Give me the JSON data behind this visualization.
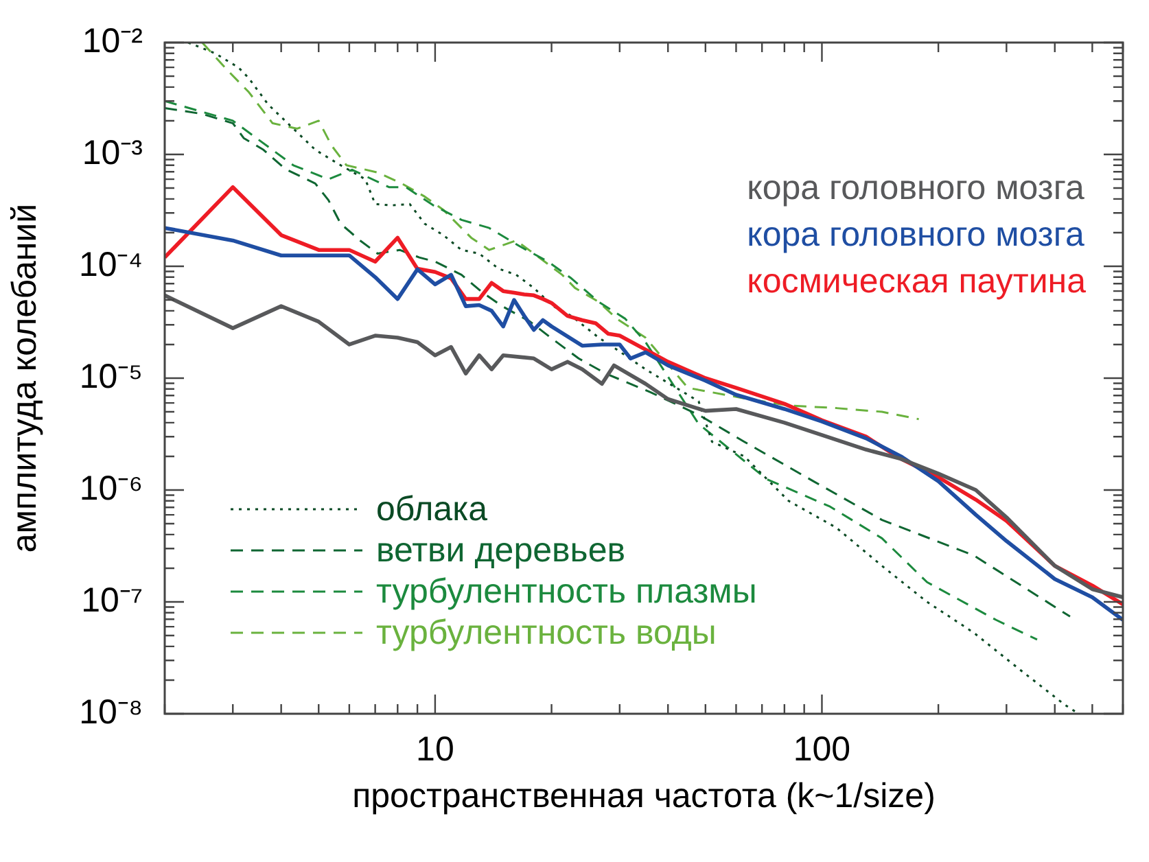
{
  "chart_data": {
    "type": "line",
    "xlabel": "пространственная частота (k~1/size)",
    "ylabel": "амплитуда колебаний",
    "log": "xy",
    "legend": "bottom left",
    "xlim": [
      2,
      600
    ],
    "ylim": [
      1e-08,
      0.01
    ],
    "xticks": [
      {
        "value": 2,
        "label": null
      },
      {
        "value": 3,
        "label": null
      },
      {
        "value": 4,
        "label": null
      },
      {
        "value": 5,
        "label": null
      },
      {
        "value": 6,
        "label": null
      },
      {
        "value": 7,
        "label": null
      },
      {
        "value": 8,
        "label": null
      },
      {
        "value": 9,
        "label": null
      },
      10,
      {
        "value": 20,
        "label": null
      },
      {
        "value": 30,
        "label": null
      },
      {
        "value": 40,
        "label": null
      },
      {
        "value": 50,
        "label": null
      },
      {
        "value": 60,
        "label": null
      },
      {
        "value": 70,
        "label": null
      },
      {
        "value": 80,
        "label": null
      },
      {
        "value": 90,
        "label": null
      },
      100,
      {
        "value": 200,
        "label": null
      },
      {
        "value": 300,
        "label": null
      },
      {
        "value": 400,
        "label": null
      },
      {
        "value": 500,
        "label": null
      },
      {
        "value": 600,
        "label": null
      }
    ],
    "yticks": [
      {
        "value": 1e-08,
        "label": "10⁻⁸"
      },
      {
        "value": 2e-08,
        "label": null
      },
      {
        "value": 3e-08,
        "label": null
      },
      {
        "value": 4e-08,
        "label": null
      },
      {
        "value": 5e-08,
        "label": null
      },
      {
        "value": 6e-08,
        "label": null
      },
      {
        "value": 7e-08,
        "label": null
      },
      {
        "value": 8e-08,
        "label": null
      },
      {
        "value": 9e-08,
        "label": null
      },
      {
        "value": 1e-07,
        "label": "10⁻⁷"
      },
      {
        "value": 2e-07,
        "label": null
      },
      {
        "value": 3e-07,
        "label": null
      },
      {
        "value": 4e-07,
        "label": null
      },
      {
        "value": 5e-07,
        "label": null
      },
      {
        "value": 6e-07,
        "label": null
      },
      {
        "value": 7e-07,
        "label": null
      },
      {
        "value": 8e-07,
        "label": null
      },
      {
        "value": 9e-07,
        "label": null
      },
      {
        "value": 1e-06,
        "label": "10⁻⁶"
      },
      {
        "value": 2e-06,
        "label": null
      },
      {
        "value": 3e-06,
        "label": null
      },
      {
        "value": 4e-06,
        "label": null
      },
      {
        "value": 5e-06,
        "label": null
      },
      {
        "value": 6e-06,
        "label": null
      },
      {
        "value": 7e-06,
        "label": null
      },
      {
        "value": 8e-06,
        "label": null
      },
      {
        "value": 9e-06,
        "label": null
      },
      {
        "value": 1e-05,
        "label": "10⁻⁵"
      },
      {
        "value": 2e-05,
        "label": null
      },
      {
        "value": 3e-05,
        "label": null
      },
      {
        "value": 4e-05,
        "label": null
      },
      {
        "value": 5e-05,
        "label": null
      },
      {
        "value": 6e-05,
        "label": null
      },
      {
        "value": 7e-05,
        "label": null
      },
      {
        "value": 8e-05,
        "label": null
      },
      {
        "value": 9e-05,
        "label": null
      },
      {
        "value": 0.0001,
        "label": "10⁻⁴"
      },
      {
        "value": 0.0002,
        "label": null
      },
      {
        "value": 0.0003,
        "label": null
      },
      {
        "value": 0.0004,
        "label": null
      },
      {
        "value": 0.0005,
        "label": null
      },
      {
        "value": 0.0006,
        "label": null
      },
      {
        "value": 0.0007,
        "label": null
      },
      {
        "value": 0.0008,
        "label": null
      },
      {
        "value": 0.0009,
        "label": null
      },
      {
        "value": 0.001,
        "label": "10⁻³"
      },
      {
        "value": 0.002,
        "label": null
      },
      {
        "value": 0.003,
        "label": null
      },
      {
        "value": 0.004,
        "label": null
      },
      {
        "value": 0.005,
        "label": null
      },
      {
        "value": 0.006,
        "label": null
      },
      {
        "value": 0.007,
        "label": null
      },
      {
        "value": 0.008,
        "label": null
      },
      {
        "value": 0.009,
        "label": null
      },
      {
        "value": 0.01,
        "label": "10⁻²"
      }
    ],
    "series": [
      {
        "name": "кора головного мозга",
        "color": "#58595b",
        "line_style": "solid",
        "x": [
          2,
          3,
          4,
          5,
          6,
          7,
          8,
          9,
          10,
          11,
          12,
          13,
          14,
          15,
          18,
          20,
          22,
          24,
          27,
          29,
          35,
          40,
          50,
          60,
          80,
          100,
          130,
          160,
          200,
          250,
          300,
          400,
          500,
          600
        ],
        "values": [
          5.5e-05,
          2.8e-05,
          4.4e-05,
          3.2e-05,
          2e-05,
          2.4e-05,
          2.3e-05,
          2.1e-05,
          1.6e-05,
          1.9e-05,
          1.1e-05,
          1.6e-05,
          1.2e-05,
          1.6e-05,
          1.5e-05,
          1.2e-05,
          1.4e-05,
          1.2e-05,
          8.9e-06,
          1.3e-05,
          8.9e-06,
          6.5e-06,
          5.1e-06,
          5.3e-06,
          4e-06,
          3.1e-06,
          2.3e-06,
          1.9e-06,
          1.4e-06,
          1e-06,
          5.7e-07,
          2.1e-07,
          1.3e-07,
          1.1e-07
        ]
      },
      {
        "name": "кора головного мозга",
        "color": "#1f4ea3",
        "line_style": "solid",
        "x": [
          2,
          3,
          4,
          5,
          6,
          7,
          8,
          9,
          10,
          11,
          12,
          13,
          14,
          15,
          16,
          17,
          18,
          19,
          20,
          24,
          27,
          30,
          32,
          35,
          40,
          50,
          60,
          80,
          100,
          130,
          160,
          200,
          250,
          300,
          400,
          500,
          600
        ],
        "values": [
          0.00022,
          0.00017,
          0.000125,
          0.000125,
          0.000125,
          8e-05,
          5.1e-05,
          9.4e-05,
          6.9e-05,
          8.4e-05,
          4.4e-05,
          4.5e-05,
          4e-05,
          2.9e-05,
          5e-05,
          3.6e-05,
          2.7e-05,
          3.3e-05,
          2.9e-05,
          1.95e-05,
          2e-05,
          2e-05,
          1.5e-05,
          1.7e-05,
          1.3e-05,
          9.5e-06,
          7.1e-06,
          5.3e-06,
          4.1e-06,
          2.9e-06,
          2e-06,
          1.2e-06,
          6e-07,
          3.5e-07,
          1.6e-07,
          1.1e-07,
          6.9e-08
        ]
      },
      {
        "name": "космическая паутина",
        "color": "#ee1c25",
        "line_style": "solid",
        "x": [
          2,
          3,
          4,
          5,
          6,
          7,
          8,
          9,
          10,
          11,
          12,
          13,
          14,
          15,
          16,
          17,
          18,
          19,
          20,
          22,
          24,
          26,
          28,
          30,
          35,
          40,
          50,
          60,
          80,
          100,
          130,
          160,
          200,
          250,
          300,
          400,
          500,
          600
        ],
        "values": [
          0.00012,
          0.00051,
          0.00019,
          0.00014,
          0.00014,
          0.00011,
          0.00018,
          9.5e-05,
          8.9e-05,
          7.8e-05,
          5.1e-05,
          5.1e-05,
          7.1e-05,
          6e-05,
          5.8e-05,
          5.6e-05,
          5.5e-05,
          5.1e-05,
          4.7e-05,
          3.6e-05,
          3.3e-05,
          3.1e-05,
          2.5e-05,
          2.4e-05,
          1.8e-05,
          1.4e-05,
          1e-05,
          8.2e-06,
          5.9e-06,
          4.2e-06,
          3e-06,
          1.9e-06,
          1.3e-06,
          8.2e-07,
          5.3e-07,
          2.1e-07,
          1.4e-07,
          9.5e-08
        ]
      },
      {
        "name": "облака",
        "color": "#0b4a24",
        "line_style": "dotted",
        "x": [
          2.3,
          2.7,
          3.1,
          3.3,
          3.7,
          4.3,
          4.9,
          5.7,
          6.6,
          7.0,
          7.7,
          8.6,
          9.4,
          10.5,
          11.7,
          13,
          14.6,
          16.2,
          18,
          20.2,
          22.5,
          26.5,
          29.5,
          35,
          48,
          52,
          63,
          82,
          109,
          143,
          187,
          247,
          324,
          425,
          461
        ],
        "values": [
          0.01,
          0.008,
          0.006,
          0.0048,
          0.0028,
          0.0017,
          0.0011,
          0.0008,
          0.0006,
          0.00036,
          0.00035,
          0.00036,
          0.00024,
          0.00019,
          0.00014,
          0.00013,
          9.5e-05,
          8.4e-05,
          6.4e-05,
          4.4e-05,
          3.6e-05,
          2.3e-05,
          1.8e-05,
          1.2e-05,
          6.2e-06,
          2.7e-06,
          2e-06,
          8e-07,
          4.6e-07,
          2.1e-07,
          1e-07,
          5.3e-08,
          2.5e-08,
          1.2e-08,
          1e-08
        ]
      },
      {
        "name": "ветви деревьев",
        "color": "#0f6632",
        "line_style": "dashed",
        "x": [
          2,
          2.5,
          3.0,
          3.2,
          3.6,
          4.1,
          4.9,
          5.3,
          5.7,
          6.4,
          7.1,
          8.1,
          9.1,
          10,
          11.7,
          13.2,
          14.9,
          17.6,
          19.9,
          23.5,
          27.6,
          36,
          48,
          63,
          95,
          143,
          247,
          438
        ],
        "values": [
          0.0026,
          0.0023,
          0.0019,
          0.0014,
          0.0011,
          0.00074,
          0.00055,
          0.00039,
          0.00024,
          0.00017,
          0.00013,
          0.00014,
          0.00012,
          0.00011,
          8.4e-05,
          5.9e-05,
          4.4e-05,
          3.2e-05,
          2.3e-05,
          1.5e-05,
          1.1e-05,
          7.5e-06,
          4.7e-06,
          2.7e-06,
          1.2e-06,
          5.4e-07,
          2.6e-07,
          7.4e-08
        ]
      },
      {
        "name": "турбулентность плазмы",
        "color": "#1c8a3e",
        "line_style": "dashed",
        "x": [
          2,
          3.0,
          4.3,
          5.3,
          6.1,
          7.6,
          8.4,
          9.9,
          11.7,
          13.8,
          16.6,
          19.6,
          22.5,
          26.5,
          31,
          35,
          48,
          72,
          105,
          143,
          187,
          282,
          360
        ],
        "values": [
          0.003,
          0.002,
          0.0008,
          0.0006,
          0.00073,
          0.00051,
          0.00051,
          0.00035,
          0.00026,
          0.00022,
          0.00015,
          0.00011,
          7.8e-05,
          4.8e-05,
          3.4e-05,
          2.1e-05,
          3.9e-06,
          1.25e-06,
          7.1e-07,
          3.7e-07,
          1.5e-07,
          6.9e-08,
          4.6e-08
        ]
      },
      {
        "name": "турбулентность воды",
        "color": "#6ab23e",
        "line_style": "dashed",
        "x": [
          2.5,
          2.9,
          3.3,
          3.8,
          4.4,
          5.0,
          5.4,
          5.9,
          7.1,
          8.2,
          9.4,
          10.5,
          12.4,
          13.8,
          16.2,
          18,
          21.3,
          23,
          26.5,
          29.5,
          35,
          45,
          63,
          82,
          109,
          143,
          178
        ],
        "values": [
          0.01,
          0.0057,
          0.0036,
          0.0019,
          0.0017,
          0.002,
          0.0012,
          0.0008,
          0.00069,
          0.00055,
          0.00042,
          0.00032,
          0.00018,
          0.00014,
          0.00017,
          0.00013,
          8.4e-05,
          6.4e-05,
          4.8e-05,
          3.4e-05,
          2.3e-05,
          8.2e-06,
          6.6e-06,
          5.7e-06,
          5.4e-06,
          5e-06,
          4.3e-06
        ]
      }
    ]
  }
}
